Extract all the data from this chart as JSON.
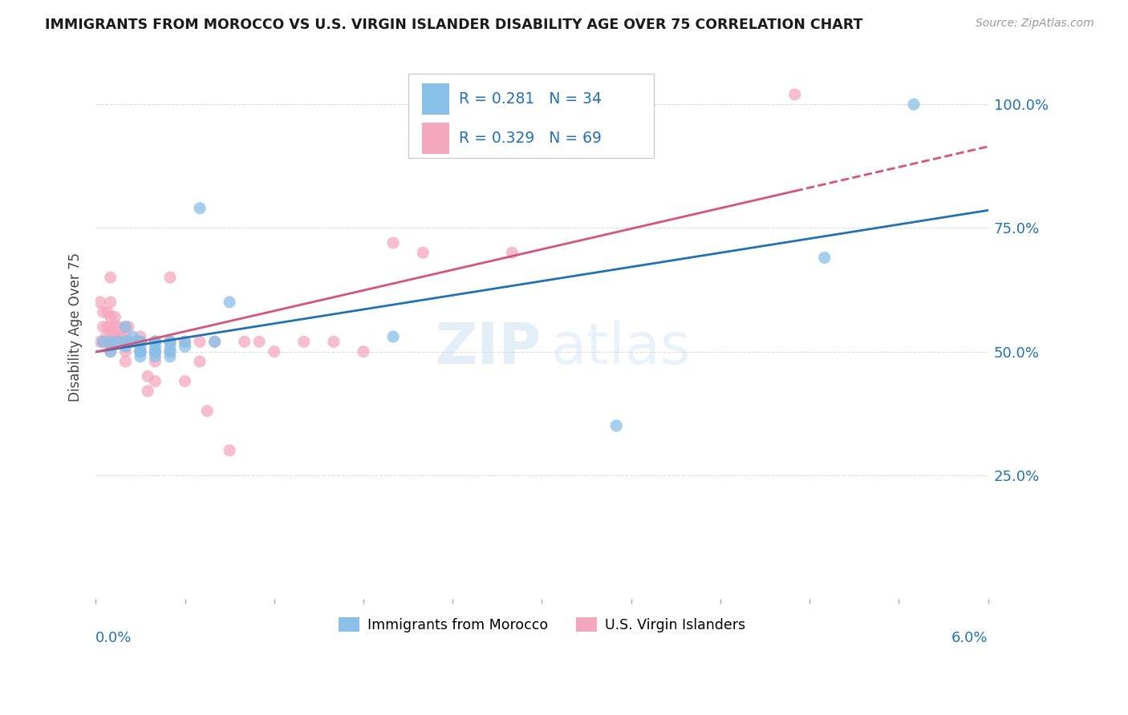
{
  "title": "IMMIGRANTS FROM MOROCCO VS U.S. VIRGIN ISLANDER DISABILITY AGE OVER 75 CORRELATION CHART",
  "source": "Source: ZipAtlas.com",
  "ylabel": "Disability Age Over 75",
  "ytick_vals": [
    0.0,
    0.25,
    0.5,
    0.75,
    1.0
  ],
  "ytick_labels": [
    "",
    "25.0%",
    "50.0%",
    "75.0%",
    "100.0%"
  ],
  "xlim": [
    0.0,
    0.06
  ],
  "ylim": [
    0.05,
    1.1
  ],
  "legend_blue_R": "0.281",
  "legend_blue_N": "34",
  "legend_pink_R": "0.329",
  "legend_pink_N": "69",
  "legend_bottom_blue": "Immigrants from Morocco",
  "legend_bottom_pink": "U.S. Virgin Islanders",
  "blue_color": "#88c0e8",
  "pink_color": "#f4a8bf",
  "blue_line_color": "#2171b5",
  "pink_line_color": "#d6547a",
  "text_color": "#2171b5",
  "title_color": "#1a1a1a",
  "source_color": "#999999",
  "grid_color": "#dddddd",
  "blue_scatter_x": [
    0.0005,
    0.001,
    0.001,
    0.0015,
    0.002,
    0.002,
    0.002,
    0.0025,
    0.003,
    0.003,
    0.003,
    0.003,
    0.003,
    0.003,
    0.003,
    0.004,
    0.004,
    0.004,
    0.004,
    0.004,
    0.004,
    0.005,
    0.005,
    0.005,
    0.005,
    0.006,
    0.006,
    0.007,
    0.008,
    0.009,
    0.02,
    0.035,
    0.049,
    0.055
  ],
  "blue_scatter_y": [
    0.52,
    0.52,
    0.5,
    0.52,
    0.51,
    0.52,
    0.55,
    0.53,
    0.52,
    0.51,
    0.5,
    0.5,
    0.49,
    0.5,
    0.52,
    0.5,
    0.49,
    0.51,
    0.52,
    0.5,
    0.52,
    0.52,
    0.51,
    0.5,
    0.49,
    0.52,
    0.51,
    0.79,
    0.52,
    0.6,
    0.53,
    0.35,
    0.69,
    1.0
  ],
  "pink_scatter_x": [
    0.0003,
    0.0003,
    0.0005,
    0.0005,
    0.0005,
    0.0007,
    0.0007,
    0.0008,
    0.0008,
    0.0008,
    0.001,
    0.001,
    0.001,
    0.001,
    0.001,
    0.001,
    0.001,
    0.001,
    0.0012,
    0.0012,
    0.0013,
    0.0013,
    0.0015,
    0.0015,
    0.0015,
    0.0017,
    0.0017,
    0.002,
    0.002,
    0.002,
    0.002,
    0.002,
    0.002,
    0.0022,
    0.0022,
    0.0025,
    0.003,
    0.003,
    0.003,
    0.003,
    0.003,
    0.0035,
    0.0035,
    0.004,
    0.004,
    0.004,
    0.004,
    0.004,
    0.005,
    0.005,
    0.005,
    0.005,
    0.006,
    0.006,
    0.007,
    0.007,
    0.0075,
    0.008,
    0.009,
    0.01,
    0.011,
    0.012,
    0.014,
    0.016,
    0.018,
    0.02,
    0.022,
    0.028,
    0.047
  ],
  "pink_scatter_y": [
    0.52,
    0.6,
    0.52,
    0.55,
    0.58,
    0.52,
    0.53,
    0.52,
    0.55,
    0.58,
    0.52,
    0.53,
    0.55,
    0.6,
    0.57,
    0.52,
    0.5,
    0.65,
    0.52,
    0.53,
    0.57,
    0.55,
    0.53,
    0.52,
    0.55,
    0.52,
    0.53,
    0.52,
    0.53,
    0.55,
    0.52,
    0.48,
    0.5,
    0.52,
    0.55,
    0.52,
    0.52,
    0.5,
    0.52,
    0.53,
    0.52,
    0.42,
    0.45,
    0.52,
    0.52,
    0.5,
    0.48,
    0.44,
    0.52,
    0.65,
    0.5,
    0.52,
    0.52,
    0.44,
    0.52,
    0.48,
    0.38,
    0.52,
    0.3,
    0.52,
    0.52,
    0.5,
    0.52,
    0.52,
    0.5,
    0.72,
    0.7,
    0.7,
    1.02
  ]
}
